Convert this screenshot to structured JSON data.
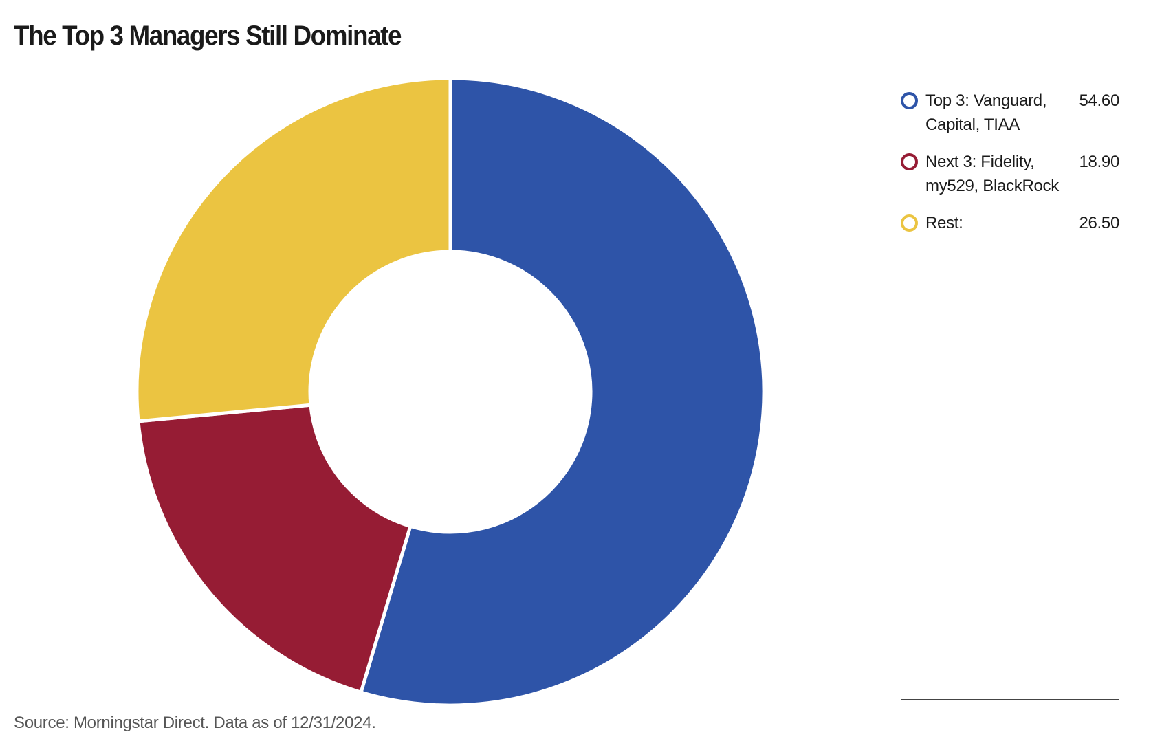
{
  "title": "The Top 3 Managers Still Dominate",
  "source_note": "Source: Morningstar Direct. Data as of 12/31/2024.",
  "chart_data": {
    "type": "pie",
    "variant": "donut",
    "title": "The Top 3 Managers Still Dominate",
    "legend_position": "right",
    "slices": [
      {
        "label": "Top 3: Vanguard, Capital, TIAA",
        "value": 54.6,
        "display_value": "54.60",
        "color": "#2E54A8"
      },
      {
        "label": "Next 3: Fidelity, my529, BlackRock",
        "value": 18.9,
        "display_value": "18.90",
        "color": "#961C34"
      },
      {
        "label": "Rest:",
        "value": 26.5,
        "display_value": "26.50",
        "color": "#EBC441"
      }
    ]
  }
}
